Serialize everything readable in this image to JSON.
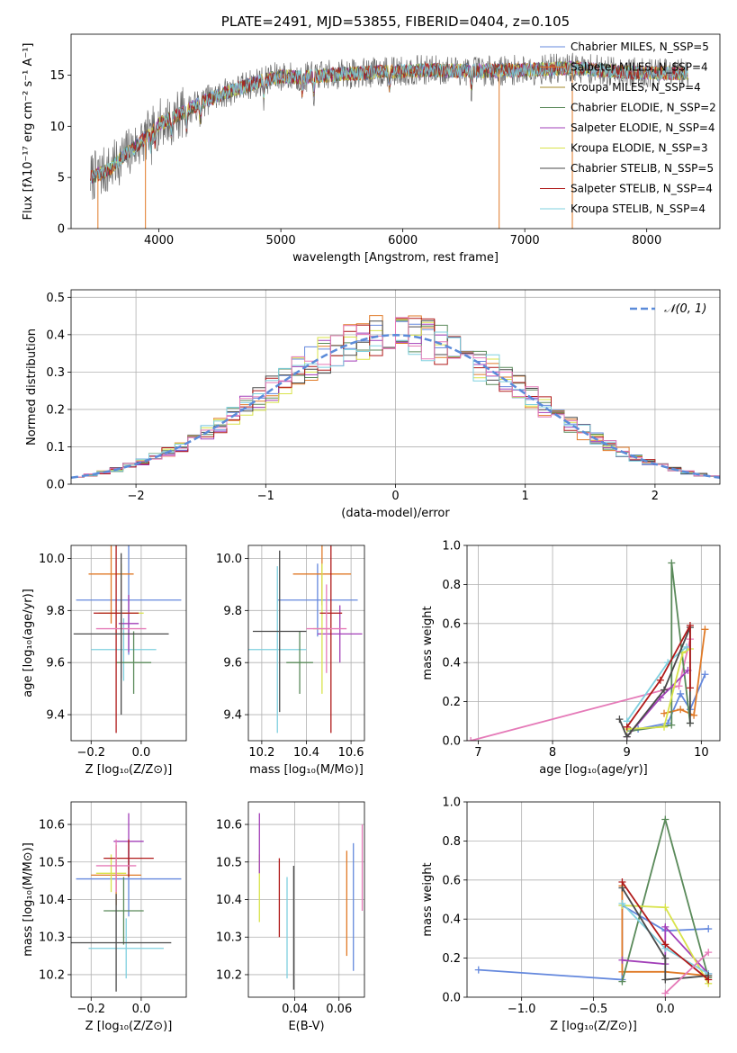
{
  "chart_data": [
    {
      "id": "spectrum",
      "type": "line",
      "title": "PLATE=2491, MJD=53855, FIBERID=0404, z=0.105",
      "xlabel": "wavelength [Angstrom, rest frame]",
      "ylabel": "Flux [fλ10⁻¹⁷ erg cm⁻² s⁻¹ A⁻¹]",
      "xlim": [
        3280,
        8600
      ],
      "ylim": [
        0,
        19
      ],
      "xticks": [
        4000,
        5000,
        6000,
        7000,
        8000
      ],
      "yticks": [
        0,
        5,
        10,
        15
      ],
      "grid": false,
      "legend_placement": "top-right",
      "continuum_x": [
        3440,
        3600,
        3700,
        3850,
        4000,
        4200,
        4400,
        4600,
        4800,
        5000,
        5200,
        5500,
        5800,
        6200,
        6600,
        7000,
        7400,
        7800,
        8100,
        8340
      ],
      "continuum_y": [
        5.0,
        5.8,
        7.0,
        8.4,
        10.2,
        11.4,
        12.6,
        13.5,
        14.3,
        14.9,
        14.8,
        15.1,
        15.3,
        15.5,
        15.4,
        15.5,
        15.7,
        15.3,
        15.2,
        15.2
      ],
      "series": [
        {
          "name": "Chabrier MILES, N_SSP=5",
          "color": "#6488dd"
        },
        {
          "name": "Salpeter MILES, N_SSP=4",
          "color": "#e07a27"
        },
        {
          "name": "Kroupa MILES, N_SSP=4",
          "color": "#a48a2a"
        },
        {
          "name": "Chabrier ELODIE, N_SSP=2",
          "color": "#5a8a5a"
        },
        {
          "name": "Salpeter ELODIE, N_SSP=4",
          "color": "#a23fb8"
        },
        {
          "name": "Kroupa ELODIE, N_SSP=3",
          "color": "#d8e34a"
        },
        {
          "name": "Chabrier STELIB, N_SSP=5",
          "color": "#4a4a4a"
        },
        {
          "name": "Salpeter STELIB, N_SSP=4",
          "color": "#b01a1a"
        },
        {
          "name": "Kroupa STELIB, N_SSP=4",
          "color": "#7fd0df"
        }
      ]
    },
    {
      "id": "residuals",
      "type": "line",
      "xlabel": "(data-model)/error",
      "ylabel": "Normed distribution",
      "xlim": [
        -2.5,
        2.5
      ],
      "ylim": [
        0,
        0.52
      ],
      "xticks": [
        -2,
        -1,
        0,
        1,
        2
      ],
      "yticks": [
        0.0,
        0.1,
        0.2,
        0.3,
        0.4,
        0.5
      ],
      "grid": true,
      "legend": "𝒩(0, 1)",
      "legend_placement": "top-right",
      "gaussian_color": "#5b8bd9",
      "hist_colors": [
        "#6488dd",
        "#e07a27",
        "#5a8a5a",
        "#a23fb8",
        "#d8e34a",
        "#4a4a4a",
        "#b01a1a",
        "#7fd0df",
        "#e57ab8"
      ]
    },
    {
      "id": "age-vs-metallicity",
      "type": "scatter",
      "xlabel": "Z [log₁₀(Z/Z⊙)]",
      "ylabel": "age  [log₁₀(age/yr)]",
      "xlim": [
        -0.28,
        0.18
      ],
      "ylim": [
        9.3,
        10.05
      ],
      "xticks": [
        -0.2,
        0.0
      ],
      "yticks": [
        9.4,
        9.6,
        9.8,
        10.0
      ],
      "grid": true,
      "points": [
        {
          "x": -0.05,
          "y": 9.84,
          "xerr": 0.21,
          "yerr": 0.21,
          "color": "#6488dd"
        },
        {
          "x": -0.12,
          "y": 9.94,
          "xerr": 0.09,
          "yerr": 0.19,
          "color": "#e07a27"
        },
        {
          "x": -0.07,
          "y": 9.65,
          "xerr": 0.13,
          "yerr": 0.12,
          "color": "#7fd0df"
        },
        {
          "x": -0.03,
          "y": 9.6,
          "xerr": 0.07,
          "yerr": 0.12,
          "color": "#5a8a5a"
        },
        {
          "x": -0.05,
          "y": 9.75,
          "xerr": 0.04,
          "yerr": 0.11,
          "color": "#a23fb8"
        },
        {
          "x": -0.08,
          "y": 9.79,
          "xerr": 0.09,
          "yerr": 0.19,
          "color": "#d8e34a"
        },
        {
          "x": -0.1,
          "y": 9.79,
          "xerr": 0.09,
          "yerr": 0.46,
          "color": "#b01a1a"
        },
        {
          "x": -0.08,
          "y": 9.73,
          "xerr": 0.1,
          "yerr": 0.19,
          "color": "#e57ab8"
        },
        {
          "x": -0.08,
          "y": 9.71,
          "xerr": 0.19,
          "yerr": 0.31,
          "color": "#4a4a4a"
        }
      ]
    },
    {
      "id": "age-vs-mass",
      "type": "scatter",
      "xlabel": "mass [log₁₀(M/M⊙)]",
      "ylabel": "",
      "xlim": [
        10.14,
        10.66
      ],
      "ylim": [
        9.3,
        10.05
      ],
      "xticks": [
        10.2,
        10.4,
        10.6
      ],
      "yticks": [
        9.4,
        9.6,
        9.8,
        10.0
      ],
      "grid": true,
      "points": [
        {
          "x": 10.45,
          "y": 9.84,
          "xerr": 0.18,
          "yerr": 0.14,
          "color": "#6488dd"
        },
        {
          "x": 10.47,
          "y": 9.94,
          "xerr": 0.13,
          "yerr": 0.12,
          "color": "#e07a27"
        },
        {
          "x": 10.27,
          "y": 9.65,
          "xerr": 0.13,
          "yerr": 0.32,
          "color": "#7fd0df"
        },
        {
          "x": 10.37,
          "y": 9.6,
          "xerr": 0.06,
          "yerr": 0.12,
          "color": "#5a8a5a"
        },
        {
          "x": 10.55,
          "y": 9.71,
          "xerr": 0.1,
          "yerr": 0.11,
          "color": "#a23fb8"
        },
        {
          "x": 10.47,
          "y": 9.73,
          "xerr": 0.04,
          "yerr": 0.25,
          "color": "#d8e34a"
        },
        {
          "x": 10.51,
          "y": 9.79,
          "xerr": 0.05,
          "yerr": 0.46,
          "color": "#b01a1a"
        },
        {
          "x": 10.49,
          "y": 9.73,
          "xerr": 0.09,
          "yerr": 0.17,
          "color": "#e57ab8"
        },
        {
          "x": 10.28,
          "y": 9.72,
          "xerr": 0.12,
          "yerr": 0.31,
          "color": "#4a4a4a"
        }
      ]
    },
    {
      "id": "mass-weight-vs-age",
      "type": "line",
      "xlabel": "age  [log₁₀(age/yr)]",
      "ylabel": "mass weight",
      "xlim": [
        6.85,
        10.25
      ],
      "ylim": [
        0,
        1.0
      ],
      "xticks": [
        7,
        8,
        9,
        10
      ],
      "yticks": [
        0.0,
        0.2,
        0.4,
        0.6,
        0.8,
        1.0
      ],
      "grid": true,
      "series": [
        {
          "color": "#e57ab8",
          "x": [
            6.9,
            9.7,
            9.85
          ],
          "y": [
            0.0,
            0.28,
            0.52
          ]
        },
        {
          "color": "#6488dd",
          "x": [
            9.15,
            9.55,
            9.72,
            9.85,
            10.05
          ],
          "y": [
            0.06,
            0.09,
            0.24,
            0.16,
            0.34
          ]
        },
        {
          "color": "#e07a27",
          "x": [
            9.5,
            9.72,
            9.9,
            10.05
          ],
          "y": [
            0.14,
            0.16,
            0.13,
            0.57
          ]
        },
        {
          "color": "#5a8a5a",
          "x": [
            9.05,
            9.6,
            9.6,
            9.85
          ],
          "y": [
            0.05,
            0.08,
            0.91,
            0.09
          ]
        },
        {
          "color": "#a23fb8",
          "x": [
            9.0,
            9.45,
            9.82
          ],
          "y": [
            0.02,
            0.22,
            0.36
          ]
        },
        {
          "color": "#d8e34a",
          "x": [
            9.0,
            9.5,
            9.75,
            9.85
          ],
          "y": [
            0.06,
            0.07,
            0.45,
            0.47
          ]
        },
        {
          "color": "#7fd0df",
          "x": [
            9.0,
            9.55,
            9.8
          ],
          "y": [
            0.1,
            0.4,
            0.48
          ]
        },
        {
          "color": "#4a4a4a",
          "x": [
            8.9,
            9.0,
            9.5,
            9.85,
            9.85
          ],
          "y": [
            0.11,
            0.02,
            0.26,
            0.58,
            0.09
          ]
        },
        {
          "color": "#b01a1a",
          "x": [
            9.0,
            9.45,
            9.85,
            9.85
          ],
          "y": [
            0.07,
            0.31,
            0.59,
            0.27
          ]
        }
      ]
    },
    {
      "id": "mass-vs-metallicity",
      "type": "scatter",
      "xlabel": "Z [log₁₀(Z/Z⊙)]",
      "ylabel": "mass [log₁₀(M/M⊙)]",
      "xlim": [
        -0.28,
        0.18
      ],
      "ylim": [
        10.14,
        10.66
      ],
      "xticks": [
        -0.2,
        0.0
      ],
      "yticks": [
        10.2,
        10.3,
        10.4,
        10.5,
        10.6
      ],
      "grid": true,
      "points": [
        {
          "x": -0.05,
          "y": 10.455,
          "xerr": 0.21,
          "yerr": 0.1,
          "color": "#6488dd"
        },
        {
          "x": -0.1,
          "y": 10.465,
          "xerr": 0.1,
          "yerr": 0.08,
          "color": "#e07a27"
        },
        {
          "x": -0.06,
          "y": 10.27,
          "xerr": 0.15,
          "yerr": 0.08,
          "color": "#7fd0df"
        },
        {
          "x": -0.07,
          "y": 10.37,
          "xerr": 0.08,
          "yerr": 0.09,
          "color": "#5a8a5a"
        },
        {
          "x": -0.05,
          "y": 10.555,
          "xerr": 0.06,
          "yerr": 0.075,
          "color": "#a23fb8"
        },
        {
          "x": -0.12,
          "y": 10.47,
          "xerr": 0.06,
          "yerr": 0.05,
          "color": "#d8e34a"
        },
        {
          "x": -0.05,
          "y": 10.51,
          "xerr": 0.1,
          "yerr": 0.05,
          "color": "#b01a1a"
        },
        {
          "x": -0.1,
          "y": 10.49,
          "xerr": 0.08,
          "yerr": 0.07,
          "color": "#e57ab8"
        },
        {
          "x": -0.1,
          "y": 10.285,
          "xerr": 0.22,
          "yerr": 0.13,
          "color": "#4a4a4a"
        }
      ]
    },
    {
      "id": "mass-vs-extinction",
      "type": "scatter",
      "xlabel": "E(B-V)",
      "ylabel": "",
      "xlim": [
        0.019,
        0.0715
      ],
      "ylim": [
        10.14,
        10.66
      ],
      "xticks": [
        0.04,
        0.06
      ],
      "yticks": [
        10.2,
        10.3,
        10.4,
        10.5,
        10.6
      ],
      "grid": true,
      "points": [
        {
          "x": 0.024,
          "y": 10.43,
          "xerr": 0,
          "yerr": 0.09,
          "color": "#d8e34a"
        },
        {
          "x": 0.024,
          "y": 10.55,
          "xerr": 0,
          "yerr": 0.08,
          "color": "#a23fb8"
        },
        {
          "x": 0.033,
          "y": 10.405,
          "xerr": 0,
          "yerr": 0.105,
          "color": "#b01a1a"
        },
        {
          "x": 0.0365,
          "y": 10.325,
          "xerr": 0,
          "yerr": 0.135,
          "color": "#7fd0df"
        },
        {
          "x": 0.0395,
          "y": 10.325,
          "xerr": 0,
          "yerr": 0.165,
          "color": "#4a4a4a"
        },
        {
          "x": 0.0635,
          "y": 10.39,
          "xerr": 0,
          "yerr": 0.14,
          "color": "#e07a27"
        },
        {
          "x": 0.0665,
          "y": 10.38,
          "xerr": 0,
          "yerr": 0.17,
          "color": "#6488dd"
        },
        {
          "x": 0.0705,
          "y": 10.485,
          "xerr": 0,
          "yerr": 0.115,
          "color": "#e57ab8"
        }
      ]
    },
    {
      "id": "mass-weight-vs-metallicity",
      "type": "line",
      "xlabel": "Z [log₁₀(Z/Z⊙)]",
      "ylabel": "mass weight",
      "xlim": [
        -1.38,
        0.38
      ],
      "ylim": [
        0,
        1.0
      ],
      "xticks": [
        -1.0,
        -0.5,
        0.0
      ],
      "yticks": [
        0.0,
        0.2,
        0.4,
        0.6,
        0.8,
        1.0
      ],
      "grid": true,
      "series": [
        {
          "color": "#6488dd",
          "x": [
            -1.3,
            -0.3,
            -0.3,
            0.0,
            0.3
          ],
          "y": [
            0.14,
            0.09,
            0.47,
            0.34,
            0.35
          ]
        },
        {
          "color": "#e07a27",
          "x": [
            -0.3,
            -0.3,
            0.0,
            0.3
          ],
          "y": [
            0.57,
            0.13,
            0.13,
            0.11
          ]
        },
        {
          "color": "#5a8a5a",
          "x": [
            -0.3,
            0.0,
            0.3
          ],
          "y": [
            0.08,
            0.91,
            0.1
          ]
        },
        {
          "color": "#a23fb8",
          "x": [
            -0.3,
            0.0,
            0.0,
            0.3
          ],
          "y": [
            0.19,
            0.17,
            0.36,
            0.12
          ]
        },
        {
          "color": "#d8e34a",
          "x": [
            -0.3,
            0.0,
            0.3
          ],
          "y": [
            0.47,
            0.46,
            0.07
          ]
        },
        {
          "color": "#7fd0df",
          "x": [
            -0.3,
            0.0,
            0.3
          ],
          "y": [
            0.48,
            0.25,
            0.12
          ]
        },
        {
          "color": "#4a4a4a",
          "x": [
            -0.3,
            0.0,
            0.0,
            0.3
          ],
          "y": [
            0.56,
            0.2,
            0.09,
            0.11
          ]
        },
        {
          "color": "#b01a1a",
          "x": [
            -0.3,
            0.0,
            0.3
          ],
          "y": [
            0.59,
            0.27,
            0.09
          ]
        },
        {
          "color": "#e57ab8",
          "x": [
            0.0,
            0.3
          ],
          "y": [
            0.02,
            0.23
          ]
        }
      ]
    }
  ]
}
